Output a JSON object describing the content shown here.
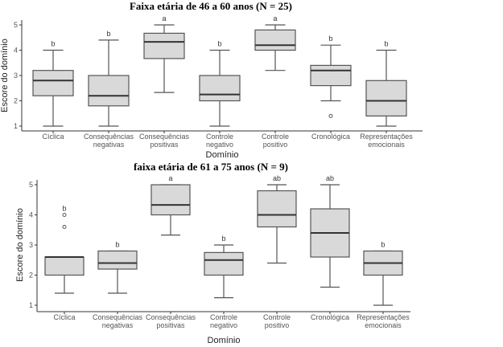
{
  "chart_data": [
    {
      "type": "boxplot",
      "title": "Faixa etária de 46 a 60 anos (N = 25)",
      "xlabel": "Domínio",
      "ylabel": "Escore do domínio",
      "ylim": [
        1,
        5
      ],
      "yticks": [
        "1",
        "2",
        "3",
        "4",
        "5"
      ],
      "categories": [
        [
          "Cíclica"
        ],
        [
          "Consequências",
          "negativas"
        ],
        [
          "Consequências",
          "positivas"
        ],
        [
          "Controle",
          "negativo"
        ],
        [
          "Controle",
          "positivo"
        ],
        [
          "Cronológica"
        ],
        [
          "Representações",
          "emocionais"
        ]
      ],
      "boxes": [
        {
          "min": 1,
          "q1": 2.2,
          "median": 2.8,
          "q3": 3.2,
          "max": 4,
          "outliers": [],
          "letter": "b"
        },
        {
          "min": 1,
          "q1": 1.8,
          "median": 2.2,
          "q3": 3.0,
          "max": 4.4,
          "outliers": [],
          "letter": "b"
        },
        {
          "min": 2.33,
          "q1": 3.67,
          "median": 4.33,
          "q3": 4.67,
          "max": 5,
          "outliers": [],
          "letter": "a"
        },
        {
          "min": 1,
          "q1": 2.0,
          "median": 2.25,
          "q3": 3.0,
          "max": 4,
          "outliers": [],
          "letter": "b"
        },
        {
          "min": 3.2,
          "q1": 4.0,
          "median": 4.2,
          "q3": 4.8,
          "max": 5,
          "outliers": [],
          "letter": "a"
        },
        {
          "min": 2,
          "q1": 2.6,
          "median": 3.2,
          "q3": 3.4,
          "max": 4.2,
          "outliers": [
            1.4
          ],
          "letter": "b"
        },
        {
          "min": 1,
          "q1": 1.4,
          "median": 2.0,
          "q3": 2.8,
          "max": 4,
          "outliers": [],
          "letter": "b"
        }
      ]
    },
    {
      "type": "boxplot",
      "title": "faixa etária de 61 a 75 anos (N = 9)",
      "xlabel": "Domínio",
      "ylabel": "Escore do domínio",
      "ylim": [
        1,
        5
      ],
      "yticks": [
        "1",
        "2",
        "3",
        "4",
        "5"
      ],
      "categories": [
        [
          "Cíclica"
        ],
        [
          "Consequências",
          "negativas"
        ],
        [
          "Consequências",
          "positivas"
        ],
        [
          "Controle",
          "negativo"
        ],
        [
          "Controle",
          "positivo"
        ],
        [
          "Cronológica"
        ],
        [
          "Representações",
          "emocionais"
        ]
      ],
      "boxes": [
        {
          "min": 1.4,
          "q1": 2.0,
          "median": 2.6,
          "q3": 2.6,
          "max": 2.6,
          "outliers": [
            3.6,
            4.0
          ],
          "letter": "b"
        },
        {
          "min": 1.4,
          "q1": 2.2,
          "median": 2.4,
          "q3": 2.8,
          "max": 2.8,
          "outliers": [],
          "letter": "b"
        },
        {
          "min": 3.33,
          "q1": 4.0,
          "median": 4.33,
          "q3": 5.0,
          "max": 5,
          "outliers": [],
          "letter": "a"
        },
        {
          "min": 1.25,
          "q1": 2.0,
          "median": 2.5,
          "q3": 2.75,
          "max": 3,
          "outliers": [],
          "letter": "b"
        },
        {
          "min": 2.4,
          "q1": 3.6,
          "median": 4.0,
          "q3": 4.8,
          "max": 5,
          "outliers": [],
          "letter": "ab"
        },
        {
          "min": 1.6,
          "q1": 2.6,
          "median": 3.4,
          "q3": 4.2,
          "max": 5,
          "outliers": [],
          "letter": "ab"
        },
        {
          "min": 1,
          "q1": 2.0,
          "median": 2.4,
          "q3": 2.8,
          "max": 2.8,
          "outliers": [],
          "letter": "b"
        }
      ]
    }
  ]
}
